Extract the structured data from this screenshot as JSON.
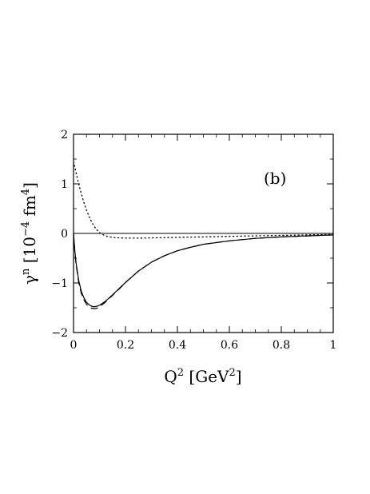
{
  "chart_data": {
    "type": "line",
    "panel_label": "(b)",
    "xlabel_main": "Q",
    "xlabel_sup": "2",
    "xlabel_unit_open": " [GeV",
    "xlabel_unit_sup": "2",
    "xlabel_unit_close": "]",
    "ylabel_main": "γ",
    "ylabel_sup": "n",
    "ylabel_unit_a": " [10",
    "ylabel_unit_sup_a": "−4",
    "ylabel_unit_b": " fm",
    "ylabel_unit_sup_b": "4",
    "ylabel_unit_c": "]",
    "xlim": [
      0,
      1
    ],
    "ylim": [
      -2,
      2
    ],
    "x_ticks": [
      0,
      0.2,
      0.4,
      0.6,
      0.8,
      1
    ],
    "x_tick_labels": [
      "0",
      "0.2",
      "0.4",
      "0.6",
      "0.8",
      "1"
    ],
    "y_ticks": [
      -2,
      -1,
      0,
      1,
      2
    ],
    "y_tick_labels": [
      "−2",
      "−1",
      "0",
      "1",
      "2"
    ],
    "zero_line": true,
    "series": [
      {
        "style": "solid",
        "x": [
          0,
          0.005,
          0.01,
          0.02,
          0.03,
          0.04,
          0.05,
          0.06,
          0.07,
          0.08,
          0.09,
          0.1,
          0.12,
          0.14,
          0.16,
          0.18,
          0.2,
          0.25,
          0.3,
          0.35,
          0.4,
          0.45,
          0.5,
          0.6,
          0.7,
          0.8,
          0.9,
          1.0
        ],
        "y": [
          0,
          -0.35,
          -0.6,
          -0.95,
          -1.17,
          -1.3,
          -1.39,
          -1.44,
          -1.47,
          -1.48,
          -1.47,
          -1.45,
          -1.38,
          -1.29,
          -1.19,
          -1.09,
          -0.99,
          -0.76,
          -0.58,
          -0.45,
          -0.35,
          -0.28,
          -0.22,
          -0.15,
          -0.1,
          -0.07,
          -0.05,
          -0.03
        ]
      },
      {
        "style": "dashed",
        "x": [
          0,
          0.005,
          0.01,
          0.02,
          0.03,
          0.04,
          0.05,
          0.06,
          0.07,
          0.08,
          0.09,
          0.1,
          0.12,
          0.14,
          0.16,
          0.18,
          0.2,
          0.25,
          0.3,
          0.35,
          0.4,
          0.45,
          0.5,
          0.6,
          0.7,
          0.8,
          0.9,
          1.0
        ],
        "y": [
          0,
          -0.37,
          -0.63,
          -0.99,
          -1.21,
          -1.34,
          -1.43,
          -1.48,
          -1.51,
          -1.52,
          -1.51,
          -1.48,
          -1.4,
          -1.3,
          -1.2,
          -1.1,
          -0.99,
          -0.76,
          -0.58,
          -0.45,
          -0.35,
          -0.28,
          -0.22,
          -0.15,
          -0.1,
          -0.07,
          -0.05,
          -0.03
        ]
      },
      {
        "style": "dotted",
        "x": [
          0,
          0.01,
          0.02,
          0.03,
          0.04,
          0.05,
          0.06,
          0.07,
          0.08,
          0.09,
          0.1,
          0.11,
          0.12,
          0.13,
          0.14,
          0.16,
          0.18,
          0.2,
          0.25,
          0.3,
          0.35,
          0.4,
          0.5,
          0.6,
          0.7,
          0.8,
          0.9,
          1.0
        ],
        "y": [
          1.45,
          1.22,
          1.0,
          0.8,
          0.62,
          0.47,
          0.34,
          0.23,
          0.14,
          0.07,
          0.02,
          -0.02,
          -0.04,
          -0.06,
          -0.07,
          -0.085,
          -0.09,
          -0.095,
          -0.095,
          -0.09,
          -0.085,
          -0.08,
          -0.07,
          -0.06,
          -0.05,
          -0.04,
          -0.03,
          -0.02
        ]
      }
    ]
  }
}
